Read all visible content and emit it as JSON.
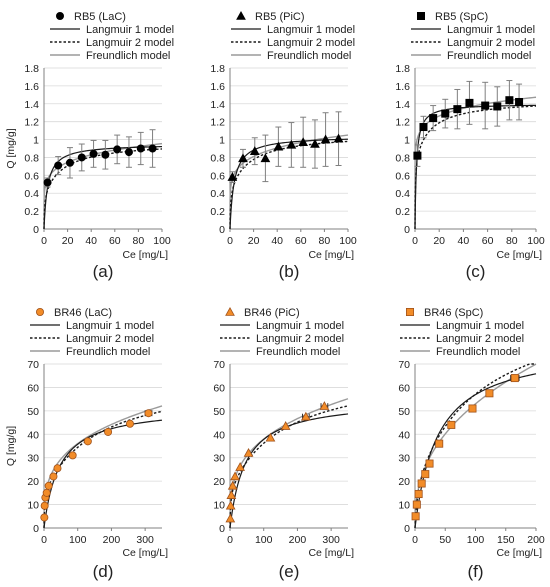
{
  "colors": {
    "marker_fill_top": "#000000",
    "marker_fill_bottom": "#f28c28",
    "marker_stroke_bottom": "#a0521b",
    "langmuir1": "#1a1a1a",
    "langmuir2": "#1a1a1a",
    "freundlich": "#9a9a9a",
    "grid": "#d9d9d9",
    "axis": "#808080",
    "error_bar": "#7f7f7f"
  },
  "chart_data": [
    {
      "type": "scatter",
      "panel_label": "(a)",
      "legend": [
        "RB5 (LaC)",
        "Langmuir 1 model",
        "Langmuir 2 model",
        "Freundlich model"
      ],
      "legend_placement": "top",
      "marker": "circle",
      "xlabel": "Ce [mg/L]",
      "ylabel": "Q [mg/g]",
      "xlim": [
        0,
        100
      ],
      "ylim": [
        0,
        1.8
      ],
      "xticks": [
        "0",
        "20",
        "40",
        "60",
        "80",
        "100"
      ],
      "yticks": [
        "0",
        "0.2",
        "0.4",
        "0.6",
        "0.8",
        "1",
        "1.2",
        "1.4",
        "1.6",
        "1.8"
      ],
      "grid": "horizontal",
      "points": [
        {
          "x": 3,
          "y": 0.52,
          "err": 0.05
        },
        {
          "x": 12,
          "y": 0.71,
          "err": 0.1
        },
        {
          "x": 22,
          "y": 0.74,
          "err": 0.17
        },
        {
          "x": 32,
          "y": 0.8,
          "err": 0.15
        },
        {
          "x": 42,
          "y": 0.84,
          "err": 0.15
        },
        {
          "x": 52,
          "y": 0.83,
          "err": 0.16
        },
        {
          "x": 62,
          "y": 0.89,
          "err": 0.16
        },
        {
          "x": 72,
          "y": 0.86,
          "err": 0.17
        },
        {
          "x": 82,
          "y": 0.9,
          "err": 0.18
        },
        {
          "x": 92,
          "y": 0.9,
          "err": 0.21
        }
      ],
      "models": {
        "langmuir1": {
          "qmax": 0.95,
          "K": 0.32
        },
        "langmuir2": {
          "qa": 0.4,
          "Ka": 2.0,
          "qb": 0.58,
          "Kb": 0.06
        },
        "freundlich": {
          "Kf": 0.47,
          "n": 6.5
        }
      }
    },
    {
      "type": "scatter",
      "panel_label": "(b)",
      "legend": [
        "RB5 (PiC)",
        "Langmuir 1 model",
        "Langmuir 2 model",
        "Freundlich model"
      ],
      "legend_placement": "top",
      "marker": "triangle",
      "xlabel": "Ce [mg/L]",
      "ylabel": "",
      "xlim": [
        0,
        100
      ],
      "ylim": [
        0,
        1.8
      ],
      "xticks": [
        "0",
        "20",
        "40",
        "60",
        "80",
        "100"
      ],
      "yticks": [
        "0",
        "0.2",
        "0.4",
        "0.6",
        "0.8",
        "1",
        "1.2",
        "1.4",
        "1.6",
        "1.8"
      ],
      "grid": "horizontal",
      "points": [
        {
          "x": 2,
          "y": 0.58,
          "err": 0.06
        },
        {
          "x": 11,
          "y": 0.79,
          "err": 0.1
        },
        {
          "x": 21,
          "y": 0.87,
          "err": 0.15
        },
        {
          "x": 30,
          "y": 0.79,
          "err": 0.26
        },
        {
          "x": 41,
          "y": 0.92,
          "err": 0.22
        },
        {
          "x": 52,
          "y": 0.94,
          "err": 0.25
        },
        {
          "x": 62,
          "y": 0.97,
          "err": 0.28
        },
        {
          "x": 72,
          "y": 0.95,
          "err": 0.27
        },
        {
          "x": 81,
          "y": 1.0,
          "err": 0.3
        },
        {
          "x": 92,
          "y": 1.01,
          "err": 0.3
        }
      ],
      "models": {
        "langmuir1": {
          "qmax": 1.04,
          "K": 0.28
        },
        "langmuir2": {
          "qa": 0.45,
          "Ka": 2.0,
          "qb": 0.62,
          "Kb": 0.06
        },
        "freundlich": {
          "Kf": 0.5,
          "n": 6.2
        }
      }
    },
    {
      "type": "scatter",
      "panel_label": "(c)",
      "legend": [
        "RB5 (SpC)",
        "Langmuir 1 model",
        "Langmuir 2 model",
        "Freundlich model"
      ],
      "legend_placement": "top",
      "marker": "square",
      "xlabel": "Ce [mg/L]",
      "ylabel": "",
      "xlim": [
        0,
        100
      ],
      "ylim": [
        0,
        1.8
      ],
      "xticks": [
        "0",
        "20",
        "40",
        "60",
        "80",
        "100"
      ],
      "yticks": [
        "0",
        "0.2",
        "0.4",
        "0.6",
        "0.8",
        "1",
        "1.2",
        "1.4",
        "1.6",
        "1.8"
      ],
      "grid": "horizontal",
      "points": [
        {
          "x": 2,
          "y": 0.82,
          "err": 0.12
        },
        {
          "x": 7,
          "y": 1.14,
          "err": 0.12
        },
        {
          "x": 15,
          "y": 1.24,
          "err": 0.14
        },
        {
          "x": 25,
          "y": 1.29,
          "err": 0.16
        },
        {
          "x": 35,
          "y": 1.34,
          "err": 0.22
        },
        {
          "x": 45,
          "y": 1.41,
          "err": 0.24
        },
        {
          "x": 58,
          "y": 1.38,
          "err": 0.26
        },
        {
          "x": 68,
          "y": 1.37,
          "err": 0.22
        },
        {
          "x": 78,
          "y": 1.44,
          "err": 0.22
        },
        {
          "x": 86,
          "y": 1.42,
          "err": 0.2
        }
      ],
      "models": {
        "langmuir1": {
          "qmax": 1.4,
          "K": 0.8
        },
        "langmuir2": {
          "qa": 0.8,
          "Ka": 3.0,
          "qb": 0.65,
          "Kb": 0.08
        },
        "freundlich": {
          "Kf": 0.95,
          "n": 10.5
        }
      }
    },
    {
      "type": "scatter",
      "panel_label": "(d)",
      "legend": [
        "BR46 (LaC)",
        "Langmuir 1 model",
        "Langmuir 2 model",
        "Freundlich model"
      ],
      "legend_placement": "top",
      "marker": "circle",
      "xlabel": "Ce [mg/L]",
      "ylabel": "Q [mg/g]",
      "xlim": [
        0,
        350
      ],
      "ylim": [
        0,
        70
      ],
      "xticks": [
        "0",
        "100",
        "200",
        "300"
      ],
      "yticks": [
        "0",
        "10",
        "20",
        "30",
        "40",
        "50",
        "60",
        "70"
      ],
      "grid": "horizontal",
      "points": [
        {
          "x": 1,
          "y": 4.5
        },
        {
          "x": 2,
          "y": 9.5
        },
        {
          "x": 4,
          "y": 13
        },
        {
          "x": 8,
          "y": 15
        },
        {
          "x": 14,
          "y": 18
        },
        {
          "x": 28,
          "y": 22
        },
        {
          "x": 40,
          "y": 25.5
        },
        {
          "x": 85,
          "y": 31
        },
        {
          "x": 130,
          "y": 37
        },
        {
          "x": 190,
          "y": 41
        },
        {
          "x": 255,
          "y": 44.5
        },
        {
          "x": 310,
          "y": 49,
          "xerr": 10
        }
      ],
      "models": {
        "langmuir1": {
          "qmax": 52,
          "K": 0.022
        },
        "langmuir2": {
          "qa": 16,
          "Ka": 0.5,
          "qb": 50,
          "Kb": 0.006
        },
        "freundlich": {
          "Kf": 9.3,
          "n": 3.4
        }
      }
    },
    {
      "type": "scatter",
      "panel_label": "(e)",
      "legend": [
        "BR46 (PiC)",
        "Langmuir 1 model",
        "Langmuir 2 model",
        "Freundlich model"
      ],
      "legend_placement": "top",
      "marker": "triangle",
      "xlabel": "Ce [mg/L]",
      "ylabel": "",
      "xlim": [
        0,
        350
      ],
      "ylim": [
        0,
        70
      ],
      "xticks": [
        "0",
        "100",
        "200",
        "300"
      ],
      "yticks": [
        "0",
        "10",
        "20",
        "30",
        "40",
        "50",
        "60",
        "70"
      ],
      "grid": "horizontal",
      "points": [
        {
          "x": 1,
          "y": 4
        },
        {
          "x": 2,
          "y": 9.5
        },
        {
          "x": 4,
          "y": 14
        },
        {
          "x": 8,
          "y": 18
        },
        {
          "x": 15,
          "y": 22
        },
        {
          "x": 30,
          "y": 26
        },
        {
          "x": 55,
          "y": 32
        },
        {
          "x": 120,
          "y": 38.5
        },
        {
          "x": 165,
          "y": 43.5
        },
        {
          "x": 225,
          "y": 47.5,
          "xerr": 10
        },
        {
          "x": 280,
          "y": 52,
          "xerr": 10
        }
      ],
      "models": {
        "langmuir1": {
          "qmax": 55,
          "K": 0.022
        },
        "langmuir2": {
          "qa": 17,
          "Ka": 0.5,
          "qb": 52,
          "Kb": 0.006
        },
        "freundlich": {
          "Kf": 9.6,
          "n": 3.35
        }
      }
    },
    {
      "type": "scatter",
      "panel_label": "(f)",
      "legend": [
        "BR46 (SpC)",
        "Langmuir 1 model",
        "Langmuir 2 model",
        "Freundlich model"
      ],
      "legend_placement": "top",
      "marker": "square",
      "xlabel": "Ce [mg/L]",
      "ylabel": "",
      "xlim": [
        0,
        200
      ],
      "ylim": [
        0,
        70
      ],
      "xticks": [
        "0",
        "50",
        "100",
        "150",
        "200"
      ],
      "yticks": [
        "0",
        "10",
        "20",
        "30",
        "40",
        "50",
        "60",
        "70"
      ],
      "grid": "horizontal",
      "points": [
        {
          "x": 1,
          "y": 5
        },
        {
          "x": 3,
          "y": 10
        },
        {
          "x": 6,
          "y": 14.5
        },
        {
          "x": 11,
          "y": 19
        },
        {
          "x": 17,
          "y": 23
        },
        {
          "x": 24,
          "y": 27.5,
          "xerr": 4
        },
        {
          "x": 40,
          "y": 36,
          "xerr": 5
        },
        {
          "x": 60,
          "y": 44,
          "xerr": 5
        },
        {
          "x": 95,
          "y": 51,
          "xerr": 5
        },
        {
          "x": 123,
          "y": 57.5,
          "xerr": 5
        },
        {
          "x": 165,
          "y": 64,
          "xerr": 7
        }
      ],
      "models": {
        "langmuir1": {
          "qmax": 78,
          "K": 0.027
        },
        "langmuir2": {
          "qa": 20,
          "Ka": 0.25,
          "qb": 80,
          "Kb": 0.009
        },
        "freundlich": {
          "Kf": 8.4,
          "n": 2.5
        }
      }
    }
  ]
}
